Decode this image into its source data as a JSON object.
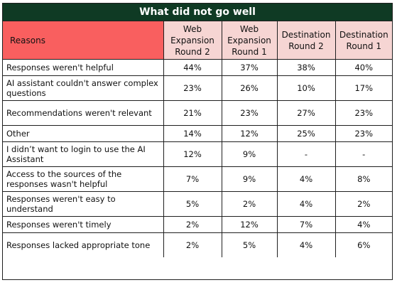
{
  "chart_data": {
    "type": "table",
    "title": "What did not go well",
    "columns": [
      "Reasons",
      "Web Expansion Round 2",
      "Web Expansion Round 1",
      "Destination Round 2",
      "Destination Round 1"
    ],
    "rows": [
      {
        "reason": "Responses weren't helpful",
        "values": [
          "44%",
          "37%",
          "38%",
          "40%"
        ],
        "lines": 1
      },
      {
        "reason": "AI assistant couldn't answer complex questions",
        "values": [
          "23%",
          "26%",
          "10%",
          "17%"
        ],
        "lines": 2
      },
      {
        "reason": "Recommendations weren't relevant",
        "values": [
          "21%",
          "23%",
          "27%",
          "23%"
        ],
        "lines": 2
      },
      {
        "reason": "Other",
        "values": [
          "14%",
          "12%",
          "25%",
          "23%"
        ],
        "lines": 1
      },
      {
        "reason": "I didn’t want to login to use the AI Assistant",
        "values": [
          "12%",
          "9%",
          "-",
          "-"
        ],
        "lines": 2
      },
      {
        "reason": "Access to the sources of the responses wasn't helpful",
        "values": [
          "7%",
          "9%",
          "4%",
          "8%"
        ],
        "lines": 2
      },
      {
        "reason": "Responses weren't easy to understand",
        "values": [
          "5%",
          "2%",
          "4%",
          "2%"
        ],
        "lines": 2
      },
      {
        "reason": "Responses weren't timely",
        "values": [
          "2%",
          "12%",
          "7%",
          "4%"
        ],
        "lines": 1
      },
      {
        "reason": "Responses lacked appropriate tone",
        "values": [
          "2%",
          "5%",
          "4%",
          "6%"
        ],
        "lines": 2
      }
    ]
  },
  "colors": {
    "title_bg": "#0f3a24",
    "reasons_header_bg": "#f95f5f",
    "column_header_bg": "#f6d5d3",
    "border": "#1f1f1f"
  }
}
